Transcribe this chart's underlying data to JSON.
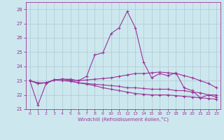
{
  "xlabel": "Windchill (Refroidissement éolien,°C)",
  "background_color": "#cce8ee",
  "grid_color": "#b0c8d8",
  "line_color": "#993399",
  "xlim": [
    -0.5,
    23.5
  ],
  "ylim": [
    21.0,
    28.5
  ],
  "yticks": [
    21,
    22,
    23,
    24,
    25,
    26,
    27,
    28
  ],
  "xticks": [
    0,
    1,
    2,
    3,
    4,
    5,
    6,
    7,
    8,
    9,
    10,
    11,
    12,
    13,
    14,
    15,
    16,
    17,
    18,
    19,
    20,
    21,
    22,
    23
  ],
  "line1_x": [
    0,
    1,
    2,
    3,
    4,
    5,
    6,
    7,
    8,
    9,
    10,
    11,
    12,
    13,
    14,
    15,
    16,
    17,
    18,
    19,
    20,
    21,
    22,
    23
  ],
  "line1_y": [
    23.0,
    21.3,
    22.8,
    23.05,
    23.1,
    23.1,
    23.0,
    23.3,
    24.8,
    24.95,
    26.3,
    26.7,
    27.85,
    26.7,
    24.3,
    23.2,
    23.5,
    23.35,
    23.55,
    22.5,
    22.3,
    21.8,
    22.0,
    22.0
  ],
  "line2_x": [
    0,
    1,
    2,
    3,
    4,
    5,
    6,
    7,
    8,
    9,
    10,
    11,
    12,
    13,
    14,
    15,
    16,
    17,
    18,
    19,
    20,
    21,
    22,
    23
  ],
  "line2_y": [
    23.0,
    22.85,
    22.85,
    23.05,
    23.1,
    23.05,
    23.0,
    23.05,
    23.1,
    23.15,
    23.2,
    23.3,
    23.4,
    23.5,
    23.5,
    23.55,
    23.6,
    23.55,
    23.5,
    23.35,
    23.2,
    23.0,
    22.8,
    22.5
  ],
  "line3_x": [
    0,
    1,
    2,
    3,
    4,
    5,
    6,
    7,
    8,
    9,
    10,
    11,
    12,
    13,
    14,
    15,
    16,
    17,
    18,
    19,
    20,
    21,
    22,
    23
  ],
  "line3_y": [
    23.0,
    22.8,
    22.85,
    23.05,
    23.1,
    23.0,
    22.85,
    22.8,
    22.75,
    22.7,
    22.65,
    22.6,
    22.5,
    22.5,
    22.45,
    22.4,
    22.4,
    22.4,
    22.3,
    22.3,
    22.2,
    22.15,
    22.0,
    21.85
  ],
  "line4_x": [
    0,
    1,
    2,
    3,
    4,
    5,
    6,
    7,
    8,
    9,
    10,
    11,
    12,
    13,
    14,
    15,
    16,
    17,
    18,
    19,
    20,
    21,
    22,
    23
  ],
  "line4_y": [
    23.0,
    22.8,
    22.85,
    23.05,
    23.0,
    22.95,
    22.85,
    22.75,
    22.65,
    22.5,
    22.4,
    22.3,
    22.2,
    22.1,
    22.05,
    22.0,
    22.0,
    22.0,
    21.95,
    21.9,
    21.85,
    21.8,
    21.75,
    21.7
  ]
}
